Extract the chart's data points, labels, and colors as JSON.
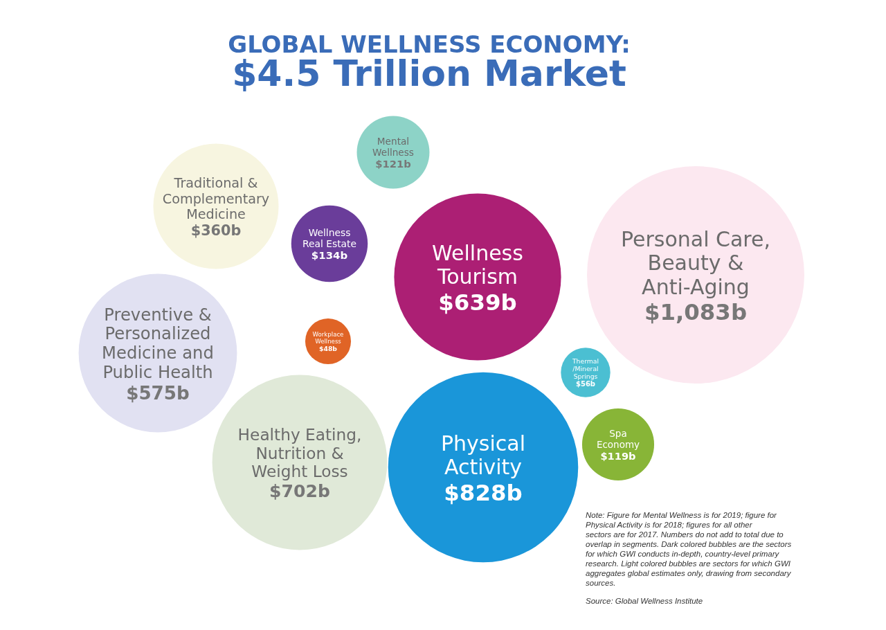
{
  "chart_data": {
    "type": "other",
    "title": "GLOBAL WELLNESS ECONOMY:",
    "subtitle": "$4.5 Trillion Market",
    "categories": [
      "Mental\nWellness",
      "Traditional &\nComplementary\nMedicine",
      "Wellness\nReal Estate",
      "Wellness\nTourism",
      "Personal Care,\nBeauty &\nAnti-Aging",
      "Preventive &\nPersonalized\nMedicine and\nPublic Health",
      "Workplace\nWellness",
      "Thermal\n/Mineral\nSprings",
      "Spa\nEconomy",
      "Healthy Eating,\nNutrition &\nWeight Loss",
      "Physical\nActivity"
    ],
    "values": [
      121,
      360,
      134,
      639,
      1083,
      575,
      48,
      56,
      119,
      702,
      828
    ],
    "value_labels": [
      "$121b",
      "$360b",
      "$134b",
      "$639b",
      "$1,083b",
      "$575b",
      "$48b",
      "$56b",
      "$119b",
      "$702b",
      "$828b"
    ],
    "colors": [
      "#8dd3c7",
      "#f7f5e0",
      "#6a3d9a",
      "#ac1f74",
      "#fce8f0",
      "#e1e1f2",
      "#e06426",
      "#4bbfd2",
      "#88b537",
      "#e0e9d8",
      "#1a96d9"
    ],
    "annotations": [
      "Note: Figure for Mental Wellness is for 2019; figure for Physical Activity is for 2018; figures for all other sectors are for 2017. Numbers do not add to total due to overlap in segments. Dark colored bubbles are the sectors for which GWI conducts in-depth, country-level primary research. Light colored bubbles are sectors for which GWI aggregates global estimates only, drawing from secondary sources.",
      "Source: Global Wellness Institute"
    ]
  }
}
